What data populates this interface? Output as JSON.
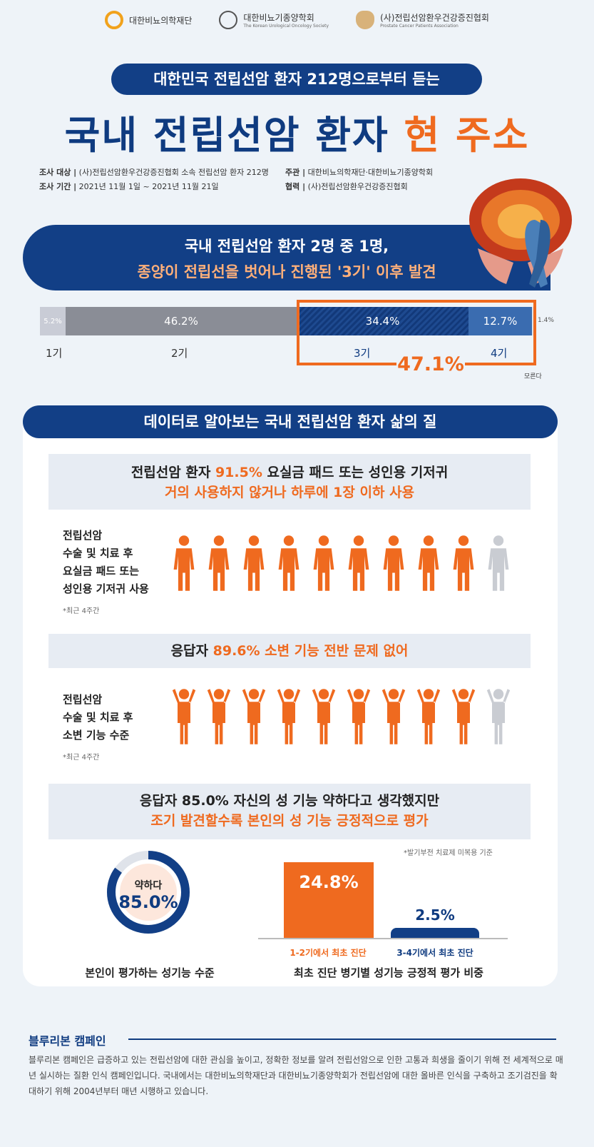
{
  "logos": [
    {
      "name": "대한비뇨의학재단",
      "sub": ""
    },
    {
      "name": "대한비뇨기종양학회",
      "sub": "The Korean Urological Oncology Society"
    },
    {
      "name": "(사)전립선암환우건강증진협회",
      "sub": "Prostate Cancer Patients Association"
    }
  ],
  "header": {
    "pill": "대한민국 전립선암 환자 212명으로부터 듣는",
    "title_main": "국내 전립선암 환자",
    "title_hl": "현 주소"
  },
  "meta": {
    "target_label": "조사 대상 |",
    "target_value": "(사)전립선암환우건강증진협회 소속 전립선암 환자 212명",
    "period_label": "조사 기간 |",
    "period_value": "2021년 11월 1일 ~ 2021년 11월 21일",
    "host_label": "주관 |",
    "host_value": "대한비뇨의학재단·대한비뇨기종양학회",
    "coop_label": "협력 |",
    "coop_value": "(사)전립선암환우건강증진협회"
  },
  "banner": {
    "line1": "국내 전립선암 환자 2명 중 1명,",
    "line2": "종양이 전립선을 벗어나 진행된 '3기' 이후 발견"
  },
  "stages": {
    "s1_pct": "5.2%",
    "s1_label": "1기",
    "s2_pct": "46.2%",
    "s2_label": "2기",
    "s3_pct": "34.4%",
    "s3_label": "3기",
    "s4_pct": "12.7%",
    "s4_label": "4기",
    "unknown_pct": "1.4%",
    "unknown_label": "모른다",
    "combined": "47.1%"
  },
  "chart_data": {
    "type": "bar",
    "categories": [
      "1기",
      "2기",
      "3기",
      "4기",
      "모른다"
    ],
    "values": [
      5.2,
      46.2,
      34.4,
      12.7,
      1.4
    ]
  },
  "section_title": "데이터로 알아보는 국내 전립선암 환자 삶의 질",
  "q1": {
    "line1_a": "전립선암 환자 ",
    "line1_b": "91.5%",
    "line1_c": " 요실금 패드 또는 성인용 기저귀",
    "line2": "거의 사용하지 않거나 하루에 1장 이하 사용",
    "side": [
      "전립선암",
      "수술 및 치료 후",
      "요실금 패드 또는",
      "성인용 기저귀 사용"
    ],
    "note": "*최근 4주간"
  },
  "q2": {
    "line1_a": "응답자 ",
    "line1_b": "89.6% 소변 기능 전반 문제 없어",
    "side": [
      "전립선암",
      "수술 및 치료 후",
      "소변 기능 수준"
    ],
    "note": "*최근 4주간"
  },
  "q3": {
    "line1": "응답자 85.0% 자신의 성 기능 약하다고 생각했지만",
    "line2": "조기 발견할수록 본인의 성 기능 긍정적으로 평가",
    "note": "*발기부전 치료제 미복용 기준",
    "donut_label": "약하다",
    "donut_value": "85.0%",
    "donut_caption": "본인이 평가하는 성기능 수준",
    "bar1_value": "24.8%",
    "bar1_label": "1-2기에서 최초 진단",
    "bar2_value": "2.5%",
    "bar2_label": "3-4기에서 최초 진단",
    "bar_caption": "최초 진단 병기별 성기능 긍정적 평가 비중"
  },
  "campaign": {
    "title": "블루리본 캠페인",
    "text": "블루리본 캠페인은 급증하고 있는 전립선암에 대한 관심을 높이고, 정확한 정보를 알려 전립선암으로 인한 고통과 희생을 줄이기 위해 전 세계적으로 매년 실시하는 질환 인식 캠페인입니다. 국내에서는 대한비뇨의학재단과 대한비뇨기종양학회가 전립선암에 대한 올바른 인식을 구축하고 조기검진을 확대하기 위해 2004년부터 매년 시행하고 있습니다."
  },
  "colors": {
    "navy": "#123f86",
    "orange": "#ef6a1f",
    "gray": "#8a8d96"
  }
}
